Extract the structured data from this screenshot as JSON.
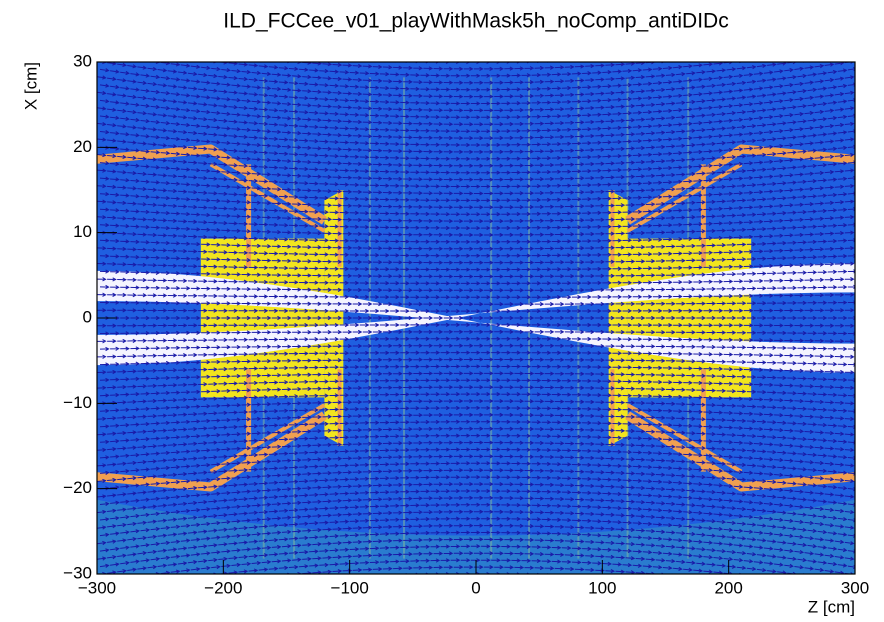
{
  "chart_data": {
    "type": "vector-field",
    "title": "ILD_FCCee_v01_playWithMask5h_noComp_antiDIDc",
    "x_label": "Z [cm]",
    "y_label": "X [cm]",
    "xlim": [
      -300,
      300
    ],
    "ylim": [
      -30,
      30
    ],
    "xticks": [
      {
        "value": -300,
        "label": "−300"
      },
      {
        "value": -200,
        "label": "−200"
      },
      {
        "value": -100,
        "label": "−100"
      },
      0,
      100,
      200,
      300
    ],
    "yticks": [
      {
        "value": -30,
        "label": "−30"
      },
      {
        "value": -20,
        "label": "−20"
      },
      {
        "value": -10,
        "label": "−10"
      },
      0,
      10,
      20,
      30
    ],
    "color": "#1f5fe0",
    "arrow_color": "#1a1aa8"
  }
}
